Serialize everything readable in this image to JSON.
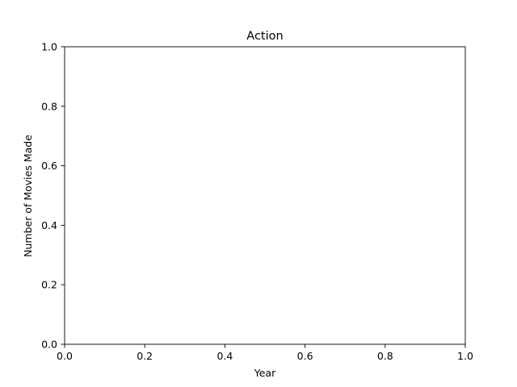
{
  "chart_data": {
    "type": "line",
    "title": "Action",
    "xlabel": "Year",
    "ylabel": "Number of Movies Made",
    "xlim": [
      0.0,
      1.0
    ],
    "ylim": [
      0.0,
      1.0
    ],
    "x_ticks": [
      "0.0",
      "0.2",
      "0.4",
      "0.6",
      "0.8",
      "1.0"
    ],
    "y_ticks": [
      "0.0",
      "0.2",
      "0.4",
      "0.6",
      "0.8",
      "1.0"
    ],
    "series": [],
    "grid": false,
    "legend": "none"
  }
}
